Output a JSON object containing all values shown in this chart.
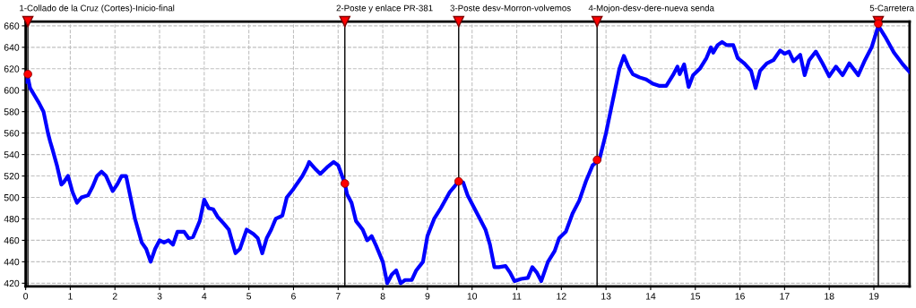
{
  "chart_data": {
    "type": "line",
    "xlim": [
      0,
      19.8
    ],
    "ylim": [
      417,
      664
    ],
    "xticks": [
      0,
      1,
      2,
      3,
      4,
      5,
      6,
      7,
      8,
      9,
      10,
      11,
      12,
      13,
      14,
      15,
      16,
      17,
      18,
      19
    ],
    "yticks": [
      420,
      440,
      460,
      480,
      500,
      520,
      540,
      560,
      580,
      600,
      620,
      640,
      660
    ],
    "grid": true,
    "line_style": "solid",
    "series": [
      {
        "type": "line",
        "color": "#0000ff",
        "marker": "none",
        "x": [
          0.0,
          0.05,
          0.1,
          0.2,
          0.3,
          0.4,
          0.5,
          0.55,
          0.6,
          0.7,
          0.8,
          0.85,
          0.95,
          1.05,
          1.15,
          1.25,
          1.4,
          1.5,
          1.6,
          1.7,
          1.8,
          1.95,
          2.05,
          2.15,
          2.25,
          2.35,
          2.45,
          2.6,
          2.7,
          2.8,
          2.9,
          3.0,
          3.1,
          3.2,
          3.3,
          3.4,
          3.55,
          3.65,
          3.75,
          3.9,
          4.0,
          4.1,
          4.2,
          4.3,
          4.45,
          4.55,
          4.7,
          4.8,
          4.95,
          5.1,
          5.2,
          5.3,
          5.4,
          5.5,
          5.6,
          5.75,
          5.85,
          6.0,
          6.2,
          6.3,
          6.35,
          6.5,
          6.6,
          6.75,
          6.9,
          7.0,
          7.15,
          7.2,
          7.3,
          7.4,
          7.55,
          7.65,
          7.75,
          7.85,
          8.0,
          8.1,
          8.2,
          8.3,
          8.4,
          8.5,
          8.65,
          8.75,
          8.9,
          9.0,
          9.15,
          9.3,
          9.5,
          9.7,
          9.8,
          9.9,
          10.05,
          10.15,
          10.3,
          10.4,
          10.5,
          10.6,
          10.75,
          10.85,
          10.95,
          11.1,
          11.25,
          11.35,
          11.45,
          11.55,
          11.7,
          11.85,
          11.95,
          12.1,
          12.25,
          12.4,
          12.55,
          12.7,
          12.85,
          13.0,
          13.1,
          13.2,
          13.3,
          13.4,
          13.5,
          13.6,
          13.75,
          13.9,
          14.05,
          14.2,
          14.35,
          14.5,
          14.6,
          14.65,
          14.75,
          14.85,
          14.95,
          15.1,
          15.25,
          15.35,
          15.4,
          15.5,
          15.6,
          15.7,
          15.85,
          15.95,
          16.1,
          16.25,
          16.35,
          16.45,
          16.6,
          16.75,
          16.9,
          17.0,
          17.1,
          17.2,
          17.35,
          17.45,
          17.55,
          17.7,
          17.85,
          18.0,
          18.15,
          18.3,
          18.45,
          18.65,
          18.8,
          18.95,
          19.1,
          19.25,
          19.45,
          19.65,
          19.8
        ],
        "values": [
          608,
          612,
          602,
          595,
          588,
          580,
          560,
          552,
          545,
          530,
          512,
          514,
          520,
          505,
          495,
          500,
          502,
          510,
          520,
          524,
          520,
          506,
          512,
          520,
          520,
          500,
          480,
          458,
          452,
          440,
          452,
          460,
          458,
          460,
          456,
          468,
          468,
          462,
          463,
          478,
          498,
          490,
          489,
          482,
          475,
          470,
          448,
          452,
          470,
          466,
          462,
          448,
          462,
          470,
          480,
          483,
          500,
          508,
          520,
          528,
          533,
          526,
          522,
          528,
          533,
          530,
          513,
          503,
          495,
          478,
          470,
          460,
          464,
          455,
          440,
          420,
          428,
          432,
          420,
          423,
          423,
          432,
          440,
          464,
          480,
          490,
          505,
          515,
          514,
          502,
          490,
          482,
          470,
          456,
          435,
          435,
          436,
          430,
          422,
          424,
          425,
          435,
          430,
          422,
          440,
          450,
          462,
          468,
          485,
          497,
          515,
          530,
          535,
          560,
          580,
          600,
          620,
          632,
          622,
          615,
          612,
          610,
          606,
          604,
          604,
          614,
          622,
          615,
          624,
          603,
          614,
          620,
          630,
          640,
          635,
          642,
          645,
          642,
          642,
          630,
          625,
          618,
          602,
          618,
          625,
          628,
          637,
          634,
          636,
          627,
          633,
          614,
          628,
          636,
          625,
          613,
          622,
          614,
          625,
          614,
          628,
          640,
          660,
          650,
          635,
          624,
          617
        ]
      },
      {
        "type": "scatter",
        "color": "#ff0000",
        "marker": "circle",
        "x": [
          0.05,
          7.15,
          9.7,
          12.8,
          19.1
        ],
        "values": [
          615,
          513,
          515,
          535,
          662
        ]
      }
    ],
    "ref_lines": [
      {
        "axis": "x",
        "value": 0.05,
        "label": "1-Collado de la Cruz (Cortes)-Inicio-final",
        "color": "#000000"
      },
      {
        "axis": "x",
        "value": 7.15,
        "label": "2-Poste y enlace PR-381",
        "color": "#000000"
      },
      {
        "axis": "x",
        "value": 9.7,
        "label": "3-Poste desv-Morron-volvemos",
        "color": "#000000"
      },
      {
        "axis": "x",
        "value": 12.8,
        "label": "4-Mojon-desv-dere-nueva senda",
        "color": "#000000"
      },
      {
        "axis": "x",
        "value": 19.1,
        "label": "5-Carretera",
        "color": "#000000"
      }
    ]
  }
}
